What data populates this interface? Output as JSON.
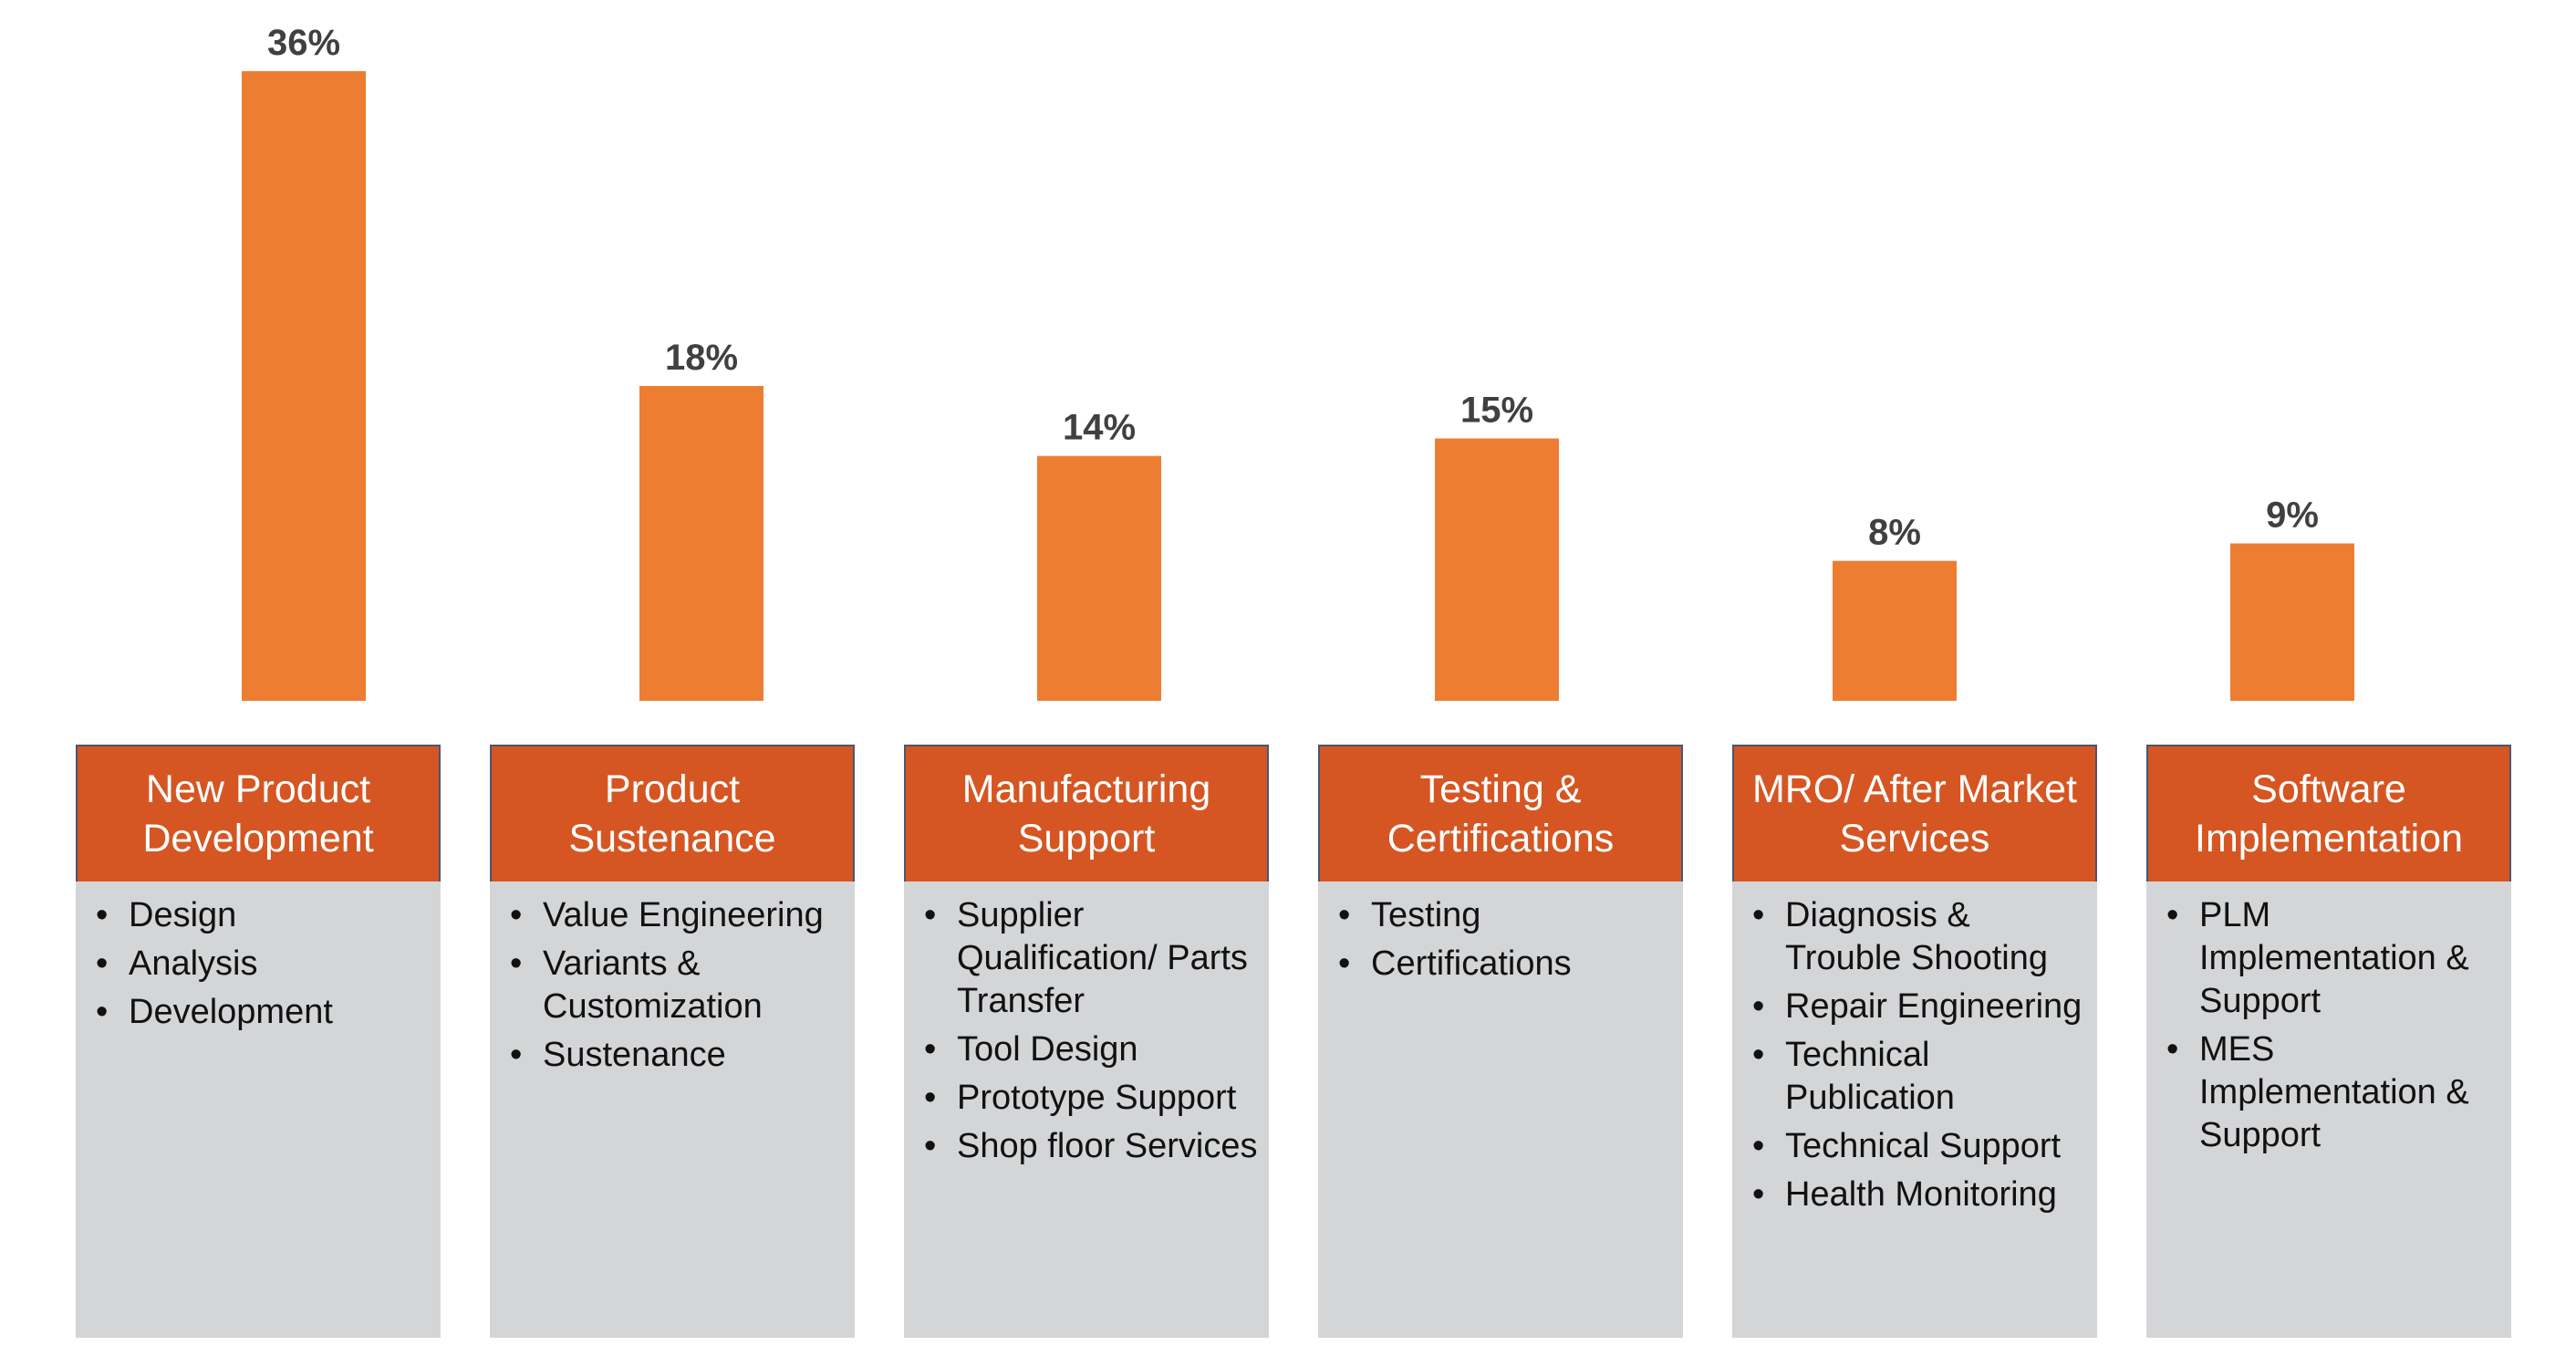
{
  "chart_data": {
    "type": "bar",
    "categories": [
      "New Product Development",
      "Product Sustenance",
      "Manufacturing Support",
      "Testing & Certifications",
      "MRO/ After Market Services",
      "Software Implementation"
    ],
    "values": [
      36,
      18,
      14,
      15,
      8,
      9
    ],
    "data_labels": [
      "36%",
      "18%",
      "14%",
      "15%",
      "8%",
      "9%"
    ],
    "unit": "%",
    "ylim": [
      0,
      36
    ],
    "grid": false,
    "colors": {
      "bar": "#ED7D31",
      "label": "#404040",
      "header": "#D55622",
      "body": "#D4D5D7"
    }
  },
  "boxes": [
    {
      "title": "New Product Development",
      "items": [
        "Design",
        "Analysis",
        "Development"
      ]
    },
    {
      "title": "Product Sustenance",
      "items": [
        "Value Engineering",
        "Variants & Customization",
        "Sustenance"
      ]
    },
    {
      "title": "Manufacturing Support",
      "items": [
        "Supplier Qualification/ Parts Transfer",
        "Tool Design",
        "Prototype Support",
        "Shop floor Services"
      ]
    },
    {
      "title": "Testing & Certifications",
      "items": [
        "Testing",
        "Certifications"
      ]
    },
    {
      "title": "MRO/ After Market Services",
      "items": [
        "Diagnosis & Trouble Shooting",
        "Repair Engineering",
        "Technical Publication",
        "Technical Support",
        "Health Monitoring"
      ]
    },
    {
      "title": "Software Implementation",
      "items": [
        "PLM Implementation & Support",
        "MES Implementation & Support"
      ]
    }
  ]
}
